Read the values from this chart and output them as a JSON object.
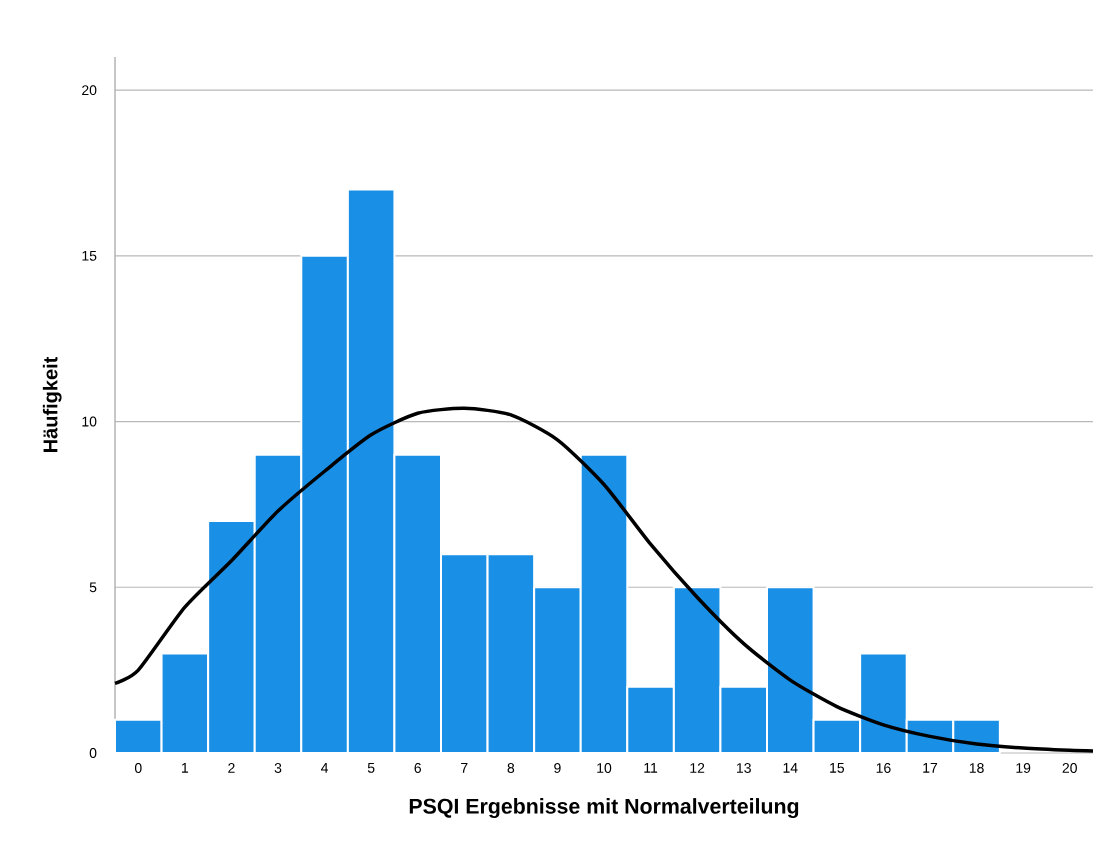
{
  "chart_data": {
    "type": "histogram",
    "xlabel": "PSQI Ergebnisse mit Normalverteilung",
    "ylabel": "Häufigkeit",
    "xlim": [
      -0.5,
      20.5
    ],
    "ylim": [
      0,
      21
    ],
    "xticks": [
      0,
      1,
      2,
      3,
      4,
      5,
      6,
      7,
      8,
      9,
      10,
      11,
      12,
      13,
      14,
      15,
      16,
      17,
      18,
      19,
      20
    ],
    "yticks": [
      0,
      5,
      10,
      15,
      20
    ],
    "grid": "y",
    "series": [
      {
        "type": "histogram",
        "color": "#1a8fe6",
        "bins": [
          -0.5,
          0.5,
          1.5,
          2.5,
          3.5,
          4.5,
          5.5,
          6.5,
          7.5,
          8.5,
          9.5,
          10.5,
          11.5,
          12.5,
          13.5,
          14.5,
          15.5,
          16.5,
          17.5,
          18.5
        ],
        "values": [
          1,
          3,
          7,
          9,
          15,
          17,
          9,
          6,
          6,
          5,
          9,
          2,
          5,
          2,
          5,
          1,
          3,
          1,
          1
        ]
      },
      {
        "type": "line",
        "color": "#000000",
        "x": [
          -0.5,
          0,
          1,
          2,
          3,
          4,
          5,
          6,
          7,
          8,
          9,
          10,
          11,
          12,
          13,
          14,
          15,
          16,
          17,
          18,
          19,
          20,
          20.5
        ],
        "values": [
          2.1,
          2.5,
          4.4,
          5.8,
          7.3,
          8.5,
          9.6,
          10.25,
          10.4,
          10.2,
          9.45,
          8.1,
          6.3,
          4.7,
          3.3,
          2.2,
          1.4,
          0.85,
          0.5,
          0.27,
          0.15,
          0.08,
          0.06
        ]
      }
    ]
  }
}
